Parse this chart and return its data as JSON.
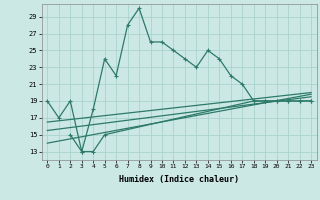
{
  "title": "",
  "xlabel": "Humidex (Indice chaleur)",
  "ylabel": "",
  "background_color": "#cce8e4",
  "grid_color": "#aad4cc",
  "line_color": "#2d7a6a",
  "xlim": [
    -0.5,
    23.5
  ],
  "ylim": [
    12,
    30.5
  ],
  "yticks": [
    13,
    15,
    17,
    19,
    21,
    23,
    25,
    27,
    29
  ],
  "xticks": [
    0,
    1,
    2,
    3,
    4,
    5,
    6,
    7,
    8,
    9,
    10,
    11,
    12,
    13,
    14,
    15,
    16,
    17,
    18,
    19,
    20,
    21,
    22,
    23
  ],
  "main_x": [
    0,
    1,
    2,
    3,
    4,
    5,
    6,
    7,
    8,
    9,
    10,
    11,
    12,
    13,
    14,
    15,
    16,
    17,
    18,
    19,
    20,
    21,
    22,
    23
  ],
  "main_y": [
    19,
    17,
    19,
    13,
    18,
    24,
    22,
    28,
    30,
    26,
    26,
    25,
    24,
    23,
    25,
    24,
    22,
    21,
    19,
    19,
    19,
    19,
    19,
    19
  ],
  "line2_x": [
    2,
    3,
    4,
    5,
    18,
    19,
    20,
    21,
    22,
    23
  ],
  "line2_y": [
    15,
    13,
    13,
    15,
    19,
    19,
    19,
    19,
    19,
    19
  ],
  "line3_x": [
    0,
    23
  ],
  "line3_y": [
    16.5,
    20
  ],
  "line4_x": [
    0,
    23
  ],
  "line4_y": [
    15.5,
    19.5
  ],
  "line5_x": [
    0,
    23
  ],
  "line5_y": [
    14.0,
    19.8
  ]
}
